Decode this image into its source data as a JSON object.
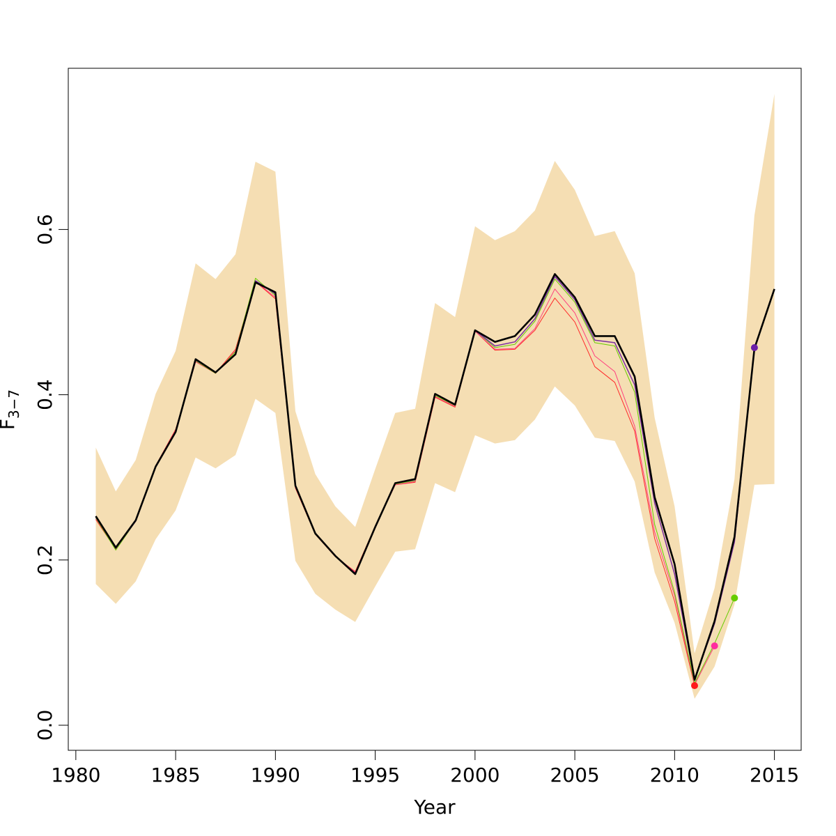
{
  "chart_data": {
    "type": "line",
    "xlabel": "Year",
    "ylabel": {
      "main": "F",
      "sub": "3−7"
    },
    "xlim": [
      1980,
      2015
    ],
    "ylim": [
      0.0,
      0.8
    ],
    "x_ticks": [
      1980,
      1985,
      1990,
      1995,
      2000,
      2005,
      2010,
      2015
    ],
    "x_tick_labels": [
      "1980",
      "1985",
      "1990",
      "1995",
      "2000",
      "2005",
      "2010",
      "2015"
    ],
    "y_ticks": [
      0.0,
      0.2,
      0.4,
      0.6
    ],
    "y_tick_labels": [
      "0.0",
      "0.2",
      "0.4",
      "0.6"
    ],
    "grid": false,
    "legend": "none",
    "band": {
      "color": "#f5deb3",
      "x": [
        1981,
        1982,
        1983,
        1984,
        1985,
        1986,
        1987,
        1988,
        1989,
        1990,
        1991,
        1992,
        1993,
        1994,
        1995,
        1996,
        1997,
        1998,
        1999,
        2000,
        2001,
        2002,
        2003,
        2004,
        2005,
        2006,
        2007,
        2008,
        2009,
        2010,
        2011,
        2012,
        2013,
        2014,
        2015
      ],
      "upper": [
        0.336,
        0.283,
        0.321,
        0.401,
        0.453,
        0.559,
        0.54,
        0.57,
        0.682,
        0.67,
        0.38,
        0.304,
        0.265,
        0.24,
        0.31,
        0.378,
        0.383,
        0.511,
        0.494,
        0.604,
        0.587,
        0.598,
        0.623,
        0.683,
        0.648,
        0.592,
        0.598,
        0.547,
        0.372,
        0.265,
        0.087,
        0.166,
        0.298,
        0.617,
        0.764
      ],
      "lower": [
        0.171,
        0.147,
        0.174,
        0.225,
        0.26,
        0.324,
        0.311,
        0.327,
        0.395,
        0.378,
        0.199,
        0.159,
        0.14,
        0.125,
        0.168,
        0.21,
        0.213,
        0.293,
        0.282,
        0.351,
        0.341,
        0.345,
        0.37,
        0.41,
        0.387,
        0.348,
        0.344,
        0.295,
        0.185,
        0.124,
        0.032,
        0.071,
        0.146,
        0.291,
        0.292
      ]
    },
    "series": [
      {
        "color": "#ff2a2a",
        "width": 1,
        "x": [
          1981,
          1982,
          1983,
          1984,
          1985,
          1986,
          1987,
          1988,
          1989,
          1990,
          1991,
          1992,
          1993,
          1994,
          1995,
          1996,
          1997,
          1998,
          1999,
          2000,
          2001,
          2002,
          2003,
          2004,
          2005,
          2006,
          2007,
          2008,
          2009,
          2010,
          2011
        ],
        "y": [
          0.249,
          0.213,
          0.248,
          0.314,
          0.358,
          0.44,
          0.426,
          0.455,
          0.537,
          0.516,
          0.287,
          0.231,
          0.204,
          0.186,
          0.241,
          0.291,
          0.294,
          0.397,
          0.385,
          0.477,
          0.454,
          0.455,
          0.478,
          0.517,
          0.488,
          0.434,
          0.415,
          0.356,
          0.226,
          0.15,
          0.048
        ]
      },
      {
        "color": "#ff3d7f",
        "width": 1,
        "x": [
          1981,
          1982,
          1983,
          1984,
          1985,
          1986,
          1987,
          1988,
          1989,
          1990,
          1991,
          1992,
          1993,
          1994,
          1995,
          1996,
          1997,
          1998,
          1999,
          2000,
          2001,
          2002,
          2003,
          2004,
          2005,
          2006,
          2007,
          2008,
          2009,
          2010,
          2011,
          2012
        ],
        "y": [
          0.25,
          0.214,
          0.248,
          0.314,
          0.357,
          0.44,
          0.426,
          0.453,
          0.537,
          0.518,
          0.288,
          0.231,
          0.205,
          0.185,
          0.24,
          0.291,
          0.295,
          0.398,
          0.386,
          0.477,
          0.455,
          0.456,
          0.48,
          0.528,
          0.499,
          0.447,
          0.428,
          0.362,
          0.234,
          0.157,
          0.049,
          0.096
        ]
      },
      {
        "color": "#66cc00",
        "width": 1,
        "x": [
          1981,
          1982,
          1983,
          1984,
          1985,
          1986,
          1987,
          1988,
          1989,
          1990,
          1991,
          1992,
          1993,
          1994,
          1995,
          1996,
          1997,
          1998,
          1999,
          2000,
          2001,
          2002,
          2003,
          2004,
          2005,
          2006,
          2007,
          2008,
          2009,
          2010,
          2011,
          2012,
          2013
        ],
        "y": [
          0.251,
          0.212,
          0.247,
          0.313,
          0.356,
          0.441,
          0.426,
          0.452,
          0.541,
          0.52,
          0.289,
          0.231,
          0.205,
          0.184,
          0.239,
          0.292,
          0.296,
          0.399,
          0.387,
          0.478,
          0.457,
          0.461,
          0.489,
          0.54,
          0.512,
          0.463,
          0.459,
          0.403,
          0.243,
          0.161,
          0.051,
          0.099,
          0.154
        ]
      },
      {
        "color": "#7b2fa0",
        "width": 1.5,
        "x": [
          1981,
          1982,
          1983,
          1984,
          1985,
          1986,
          1987,
          1988,
          1989,
          1990,
          1991,
          1992,
          1993,
          1994,
          1995,
          1996,
          1997,
          1998,
          1999,
          2000,
          2001,
          2002,
          2003,
          2004,
          2005,
          2006,
          2007,
          2008,
          2009,
          2010,
          2011,
          2012,
          2013,
          2014
        ],
        "y": [
          0.252,
          0.214,
          0.247,
          0.313,
          0.355,
          0.442,
          0.427,
          0.449,
          0.538,
          0.522,
          0.29,
          0.232,
          0.205,
          0.184,
          0.239,
          0.293,
          0.297,
          0.401,
          0.388,
          0.478,
          0.459,
          0.464,
          0.492,
          0.543,
          0.515,
          0.466,
          0.463,
          0.412,
          0.269,
          0.183,
          0.055,
          0.123,
          0.222,
          0.457
        ]
      },
      {
        "color": "#000000",
        "width": 2.6,
        "x": [
          1981,
          1982,
          1983,
          1984,
          1985,
          1986,
          1987,
          1988,
          1989,
          1990,
          1991,
          1992,
          1993,
          1994,
          1995,
          1996,
          1997,
          1998,
          1999,
          2000,
          2001,
          2002,
          2003,
          2004,
          2005,
          2006,
          2007,
          2008,
          2009,
          2010,
          2011,
          2012,
          2013,
          2014,
          2015
        ],
        "y": [
          0.253,
          0.215,
          0.248,
          0.313,
          0.355,
          0.443,
          0.427,
          0.449,
          0.536,
          0.524,
          0.29,
          0.232,
          0.205,
          0.183,
          0.24,
          0.293,
          0.298,
          0.401,
          0.388,
          0.478,
          0.464,
          0.471,
          0.497,
          0.546,
          0.518,
          0.471,
          0.471,
          0.422,
          0.276,
          0.195,
          0.055,
          0.126,
          0.228,
          0.456,
          0.528
        ]
      }
    ],
    "points": [
      {
        "x": 2011,
        "y": 0.048,
        "color": "#ff1a1a"
      },
      {
        "x": 2012,
        "y": 0.096,
        "color": "#ff2d9e"
      },
      {
        "x": 2013,
        "y": 0.154,
        "color": "#66cc00"
      },
      {
        "x": 2014,
        "y": 0.457,
        "color": "#6a1fa8"
      }
    ]
  }
}
